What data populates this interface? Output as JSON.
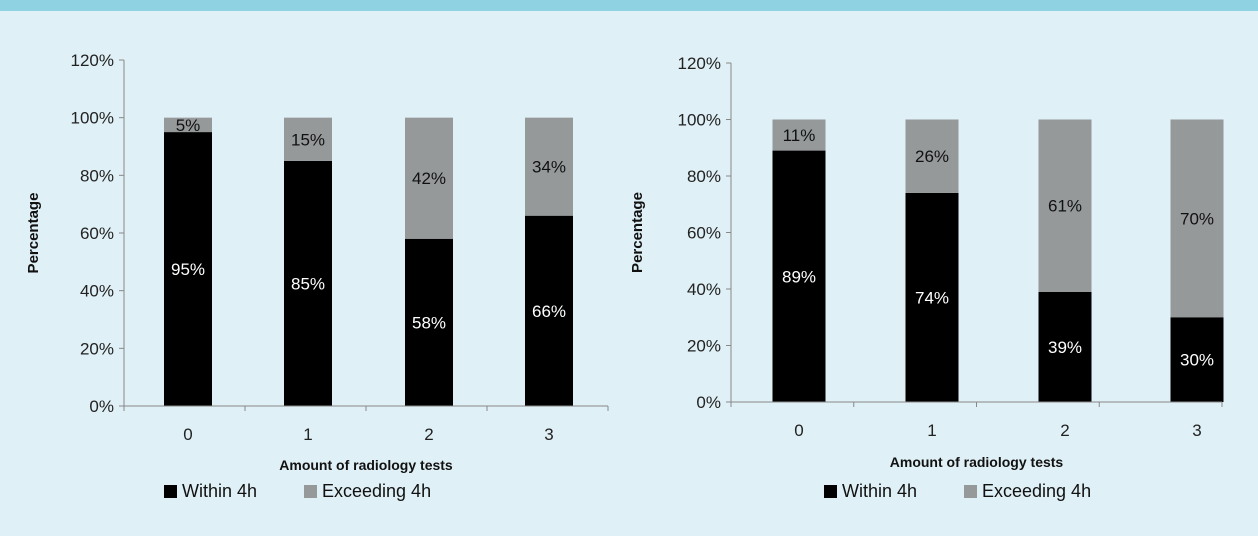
{
  "colors": {
    "background": "#dff0f6",
    "top_bar": "#8fd3e2",
    "within": "#000000",
    "exceeding": "#95999a",
    "axis": "#888888"
  },
  "chart_data": [
    {
      "type": "bar",
      "stacked": true,
      "categories": [
        "0",
        "1",
        "2",
        "3"
      ],
      "series": [
        {
          "name": "Within 4h",
          "values": [
            95,
            85,
            58,
            66
          ],
          "labels": [
            "95%",
            "85%",
            "58%",
            "66%"
          ]
        },
        {
          "name": "Exceeding 4h",
          "values": [
            5,
            15,
            42,
            34
          ],
          "labels": [
            "5%",
            "15%",
            "42%",
            "34%"
          ]
        }
      ],
      "xlabel": "Amount of radiology tests",
      "ylabel": "Percentage",
      "ylim": [
        0,
        120
      ],
      "yticks": [
        "0%",
        "20%",
        "40%",
        "60%",
        "80%",
        "100%",
        "120%"
      ],
      "grid": false,
      "legend": "bottom-left"
    },
    {
      "type": "bar",
      "stacked": true,
      "categories": [
        "0",
        "1",
        "2",
        "3"
      ],
      "series": [
        {
          "name": "Within 4h",
          "values": [
            89,
            74,
            39,
            30
          ],
          "labels": [
            "89%",
            "74%",
            "39%",
            "30%"
          ]
        },
        {
          "name": "Exceeding 4h",
          "values": [
            11,
            26,
            61,
            70
          ],
          "labels": [
            "11%",
            "26%",
            "61%",
            "70%"
          ]
        }
      ],
      "xlabel": "Amount of radiology tests",
      "ylabel": "Percentage",
      "ylim": [
        0,
        120
      ],
      "yticks": [
        "0%",
        "20%",
        "40%",
        "60%",
        "80%",
        "100%",
        "120%"
      ],
      "grid": false,
      "legend": "bottom-left"
    }
  ]
}
